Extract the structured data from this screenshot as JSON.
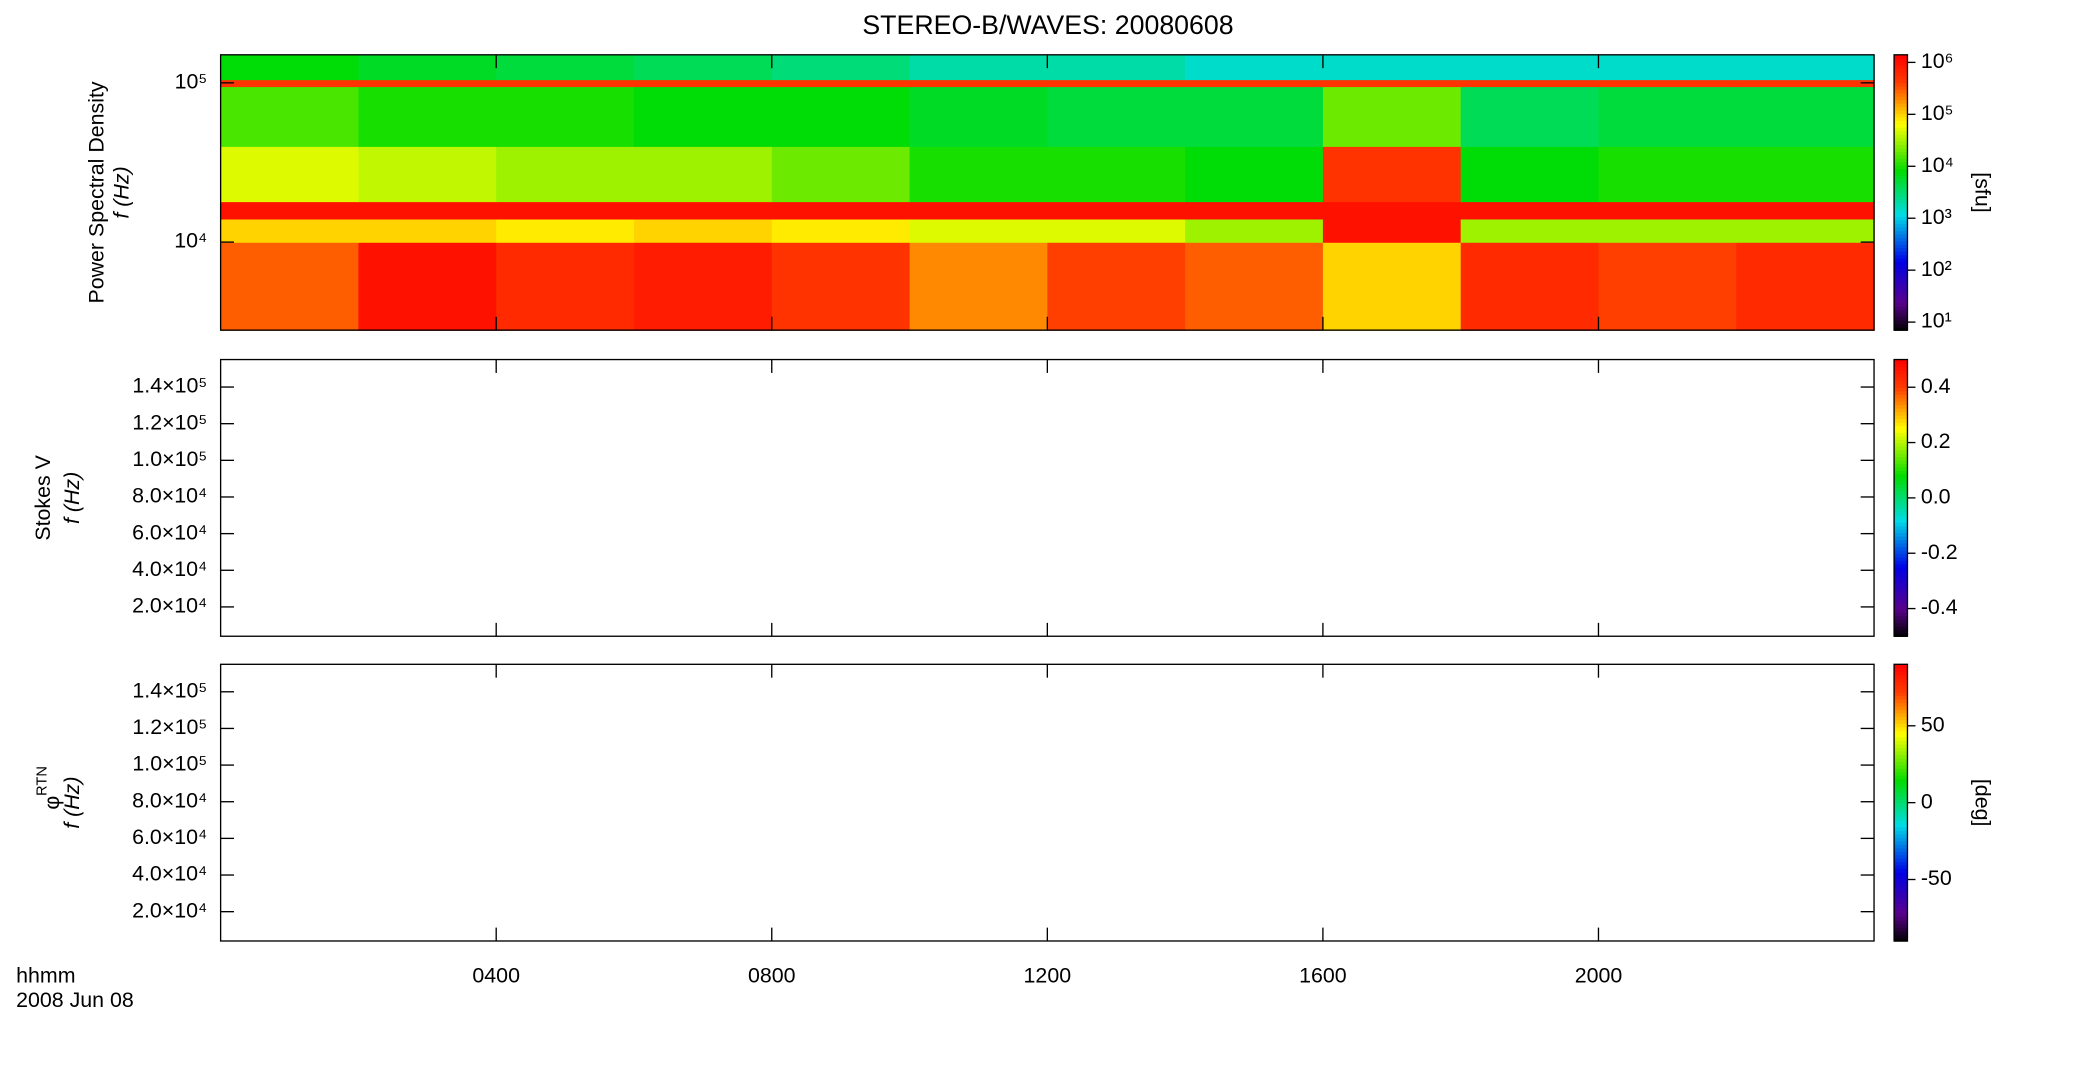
{
  "chart_data": [
    {
      "type": "heatmap",
      "title": "STEREO-B/WAVES: 20080608",
      "ylabel": "Power Spectral Density",
      "ylabel2": "f (Hz)",
      "x": [
        0,
        2,
        4,
        6,
        8,
        10,
        12,
        14,
        16,
        18,
        20,
        22,
        24
      ],
      "y": [
        2800,
        10000,
        14000,
        18000,
        40000,
        95000,
        105000,
        150000
      ],
      "z": [
        [
          300000,
          1000000,
          600000,
          800000,
          500000,
          200000,
          400000,
          300000,
          100000,
          600000,
          400000,
          600000
        ],
        [
          100000,
          100000,
          80000,
          100000,
          80000,
          50000,
          50000,
          30000,
          1000000,
          30000,
          30000,
          30000
        ],
        [
          1000000,
          1000000,
          1000000,
          1000000,
          1000000,
          1000000,
          1000000,
          1000000,
          1000000,
          1000000,
          1000000,
          1000000
        ],
        [
          50000,
          40000,
          30000,
          30000,
          20000,
          10000,
          10000,
          8000,
          500000,
          8000,
          10000,
          10000
        ],
        [
          15000,
          10000,
          10000,
          8000,
          8000,
          6000,
          5000,
          5000,
          20000,
          4000,
          5000,
          5000
        ],
        [
          500000,
          500000,
          500000,
          500000,
          500000,
          500000,
          500000,
          500000,
          500000,
          500000,
          500000,
          500000
        ],
        [
          8000,
          6000,
          5000,
          4000,
          3000,
          2000,
          2000,
          1500,
          1500,
          1500,
          1500,
          1500
        ]
      ],
      "ylog": true,
      "ylim": [
        2800,
        150000
      ],
      "yticks": [
        {
          "value": 10000,
          "label": "10⁴"
        },
        {
          "value": 100000,
          "label": "10⁵"
        }
      ],
      "clog": true,
      "clim": [
        7,
        1400000
      ],
      "cticks": [
        {
          "value": 10,
          "label": "10¹"
        },
        {
          "value": 100,
          "label": "10²"
        },
        {
          "value": 1000,
          "label": "10³"
        },
        {
          "value": 10000,
          "label": "10⁴"
        },
        {
          "value": 100000,
          "label": "10⁵"
        },
        {
          "value": 1000000,
          "label": "10⁶"
        }
      ],
      "clabel": "[sfu]"
    },
    {
      "type": "heatmap",
      "ylabel": "Stokes V",
      "ylabel2": "f (Hz)",
      "ylim": [
        4000,
        155000
      ],
      "yticks": [
        {
          "value": 20000,
          "label": "2.0×10⁴"
        },
        {
          "value": 40000,
          "label": "4.0×10⁴"
        },
        {
          "value": 60000,
          "label": "6.0×10⁴"
        },
        {
          "value": 80000,
          "label": "8.0×10⁴"
        },
        {
          "value": 100000,
          "label": "1.0×10⁵"
        },
        {
          "value": 120000,
          "label": "1.2×10⁵"
        },
        {
          "value": 140000,
          "label": "1.4×10⁵"
        }
      ],
      "clim": [
        -0.5,
        0.5
      ],
      "cticks": [
        -0.4,
        -0.2,
        {
          "value": 0,
          "label": "0.0"
        },
        0.2,
        0.4
      ]
    },
    {
      "type": "heatmap",
      "ylabel": "φ",
      "ylabel_sub": "RTN",
      "ylabel2": "f (Hz)",
      "ylim": [
        4000,
        155000
      ],
      "yticks": [
        {
          "value": 20000,
          "label": "2.0×10⁴"
        },
        {
          "value": 40000,
          "label": "4.0×10⁴"
        },
        {
          "value": 60000,
          "label": "6.0×10⁴"
        },
        {
          "value": 80000,
          "label": "8.0×10⁴"
        },
        {
          "value": 100000,
          "label": "1.0×10⁵"
        },
        {
          "value": 120000,
          "label": "1.2×10⁵"
        },
        {
          "value": 140000,
          "label": "1.4×10⁵"
        }
      ],
      "clim": [
        -90,
        90
      ],
      "cticks": [
        -50,
        0,
        50
      ],
      "clabel": "[deg]",
      "xlim": [
        0,
        24
      ],
      "xticks": [
        {
          "value": 4,
          "label": "0400"
        },
        {
          "value": 8,
          "label": "0800"
        },
        {
          "value": 12,
          "label": "1200"
        },
        {
          "value": 16,
          "label": "1600"
        },
        {
          "value": 20,
          "label": "2000"
        }
      ],
      "xlabel": "hhmm",
      "date": "2008 Jun 08"
    }
  ]
}
